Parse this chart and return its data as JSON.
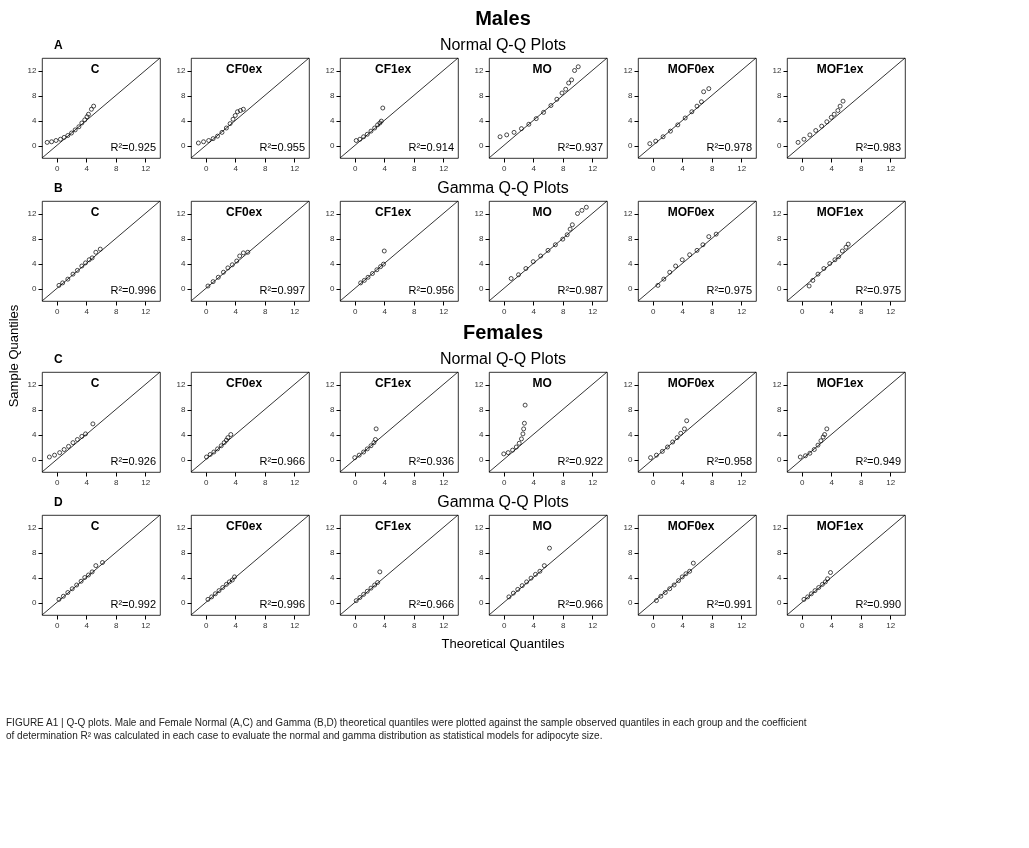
{
  "chart_data": [
    {
      "type": "other",
      "annotations": [
        "Males",
        "A",
        "Normal Q-Q Plots",
        "B",
        "Gamma Q-Q Plots",
        "Females",
        "C",
        "Normal Q-Q Plots",
        "D",
        "Gamma Q-Q Plots",
        "Sample Quantiles",
        "Theoretical Quantiles",
        "FIGURE A1 | Q-Q plots. Male and Female Normal (A,C) and Gamma (B,D) theoretical quantiles were plotted against the sample observed quantiles in each group and the coefficient of determination R² was calculated in each case to evaluate the normal and gamma distribution as statistical models for adipocyte size."
      ]
    },
    {
      "type": "scatter",
      "title": "C",
      "annotations": [
        "R²=0.925"
      ],
      "xlim": [
        -2,
        14
      ],
      "ylim": [
        -2,
        14
      ],
      "xticks": [
        0,
        4,
        8,
        12
      ],
      "yticks": [
        0,
        4,
        8,
        12
      ],
      "series": [
        {
          "type": "scatter",
          "marker": "circle",
          "color": "#000000",
          "x": [
            -1.3,
            -0.7,
            -0.1,
            0.5,
            1.0,
            1.5,
            2.0,
            2.5,
            3.0,
            3.4,
            3.8,
            4.1,
            4.3,
            4.7,
            5.0
          ],
          "values": [
            0.5,
            0.6,
            0.8,
            1.0,
            1.3,
            1.6,
            2.0,
            2.5,
            3.0,
            3.6,
            4.1,
            4.6,
            5.0,
            5.8,
            6.3
          ]
        },
        {
          "type": "line",
          "color": "#000000",
          "x": [
            -2,
            14
          ],
          "values": [
            -2,
            14
          ]
        }
      ]
    },
    {
      "type": "scatter",
      "title": "CF0ex",
      "annotations": [
        "R²=0.955"
      ],
      "xlim": [
        -2,
        14
      ],
      "ylim": [
        -2,
        14
      ],
      "xticks": [
        0,
        4,
        8,
        12
      ],
      "yticks": [
        0,
        4,
        8,
        12
      ],
      "series": [
        {
          "type": "scatter",
          "marker": "circle",
          "color": "#000000",
          "x": [
            -1.0,
            -0.3,
            0.4,
            1.0,
            1.6,
            2.2,
            2.8,
            3.3,
            3.7,
            4.0,
            4.3,
            4.7,
            5.1
          ],
          "values": [
            0.4,
            0.6,
            0.8,
            1.1,
            1.5,
            2.1,
            2.8,
            3.5,
            4.2,
            4.8,
            5.4,
            5.6,
            5.8
          ]
        },
        {
          "type": "line",
          "color": "#000000",
          "x": [
            -2,
            14
          ],
          "values": [
            -2,
            14
          ]
        }
      ]
    },
    {
      "type": "scatter",
      "title": "CF1ex",
      "annotations": [
        "R²=0.914"
      ],
      "xlim": [
        -2,
        14
      ],
      "ylim": [
        -2,
        14
      ],
      "xticks": [
        0,
        4,
        8,
        12
      ],
      "yticks": [
        0,
        4,
        8,
        12
      ],
      "series": [
        {
          "type": "scatter",
          "marker": "circle",
          "color": "#000000",
          "x": [
            0.2,
            0.7,
            1.2,
            1.7,
            2.2,
            2.7,
            3.1,
            3.4,
            3.6,
            3.8
          ],
          "values": [
            0.8,
            1.0,
            1.4,
            1.8,
            2.3,
            2.8,
            3.3,
            3.6,
            3.9,
            6.0
          ]
        },
        {
          "type": "line",
          "color": "#000000",
          "x": [
            -2,
            14
          ],
          "values": [
            -2,
            14
          ]
        }
      ]
    },
    {
      "type": "scatter",
      "title": "MO",
      "annotations": [
        "R²=0.937"
      ],
      "xlim": [
        -2,
        14
      ],
      "ylim": [
        -2,
        14
      ],
      "xticks": [
        0,
        4,
        8,
        12
      ],
      "yticks": [
        0,
        4,
        8,
        12
      ],
      "series": [
        {
          "type": "scatter",
          "marker": "circle",
          "color": "#000000",
          "x": [
            -0.5,
            0.4,
            1.4,
            2.4,
            3.4,
            4.4,
            5.4,
            6.4,
            7.2,
            7.9,
            8.4,
            8.8,
            9.2,
            9.6,
            10.1
          ],
          "values": [
            1.4,
            1.7,
            2.1,
            2.7,
            3.4,
            4.3,
            5.3,
            6.4,
            7.4,
            8.4,
            9.0,
            10.0,
            10.5,
            12.0,
            12.6
          ]
        },
        {
          "type": "line",
          "color": "#000000",
          "x": [
            -2,
            14
          ],
          "values": [
            -2,
            14
          ]
        }
      ]
    },
    {
      "type": "scatter",
      "title": "MOF0ex",
      "annotations": [
        "R²=0.978"
      ],
      "xlim": [
        -2,
        14
      ],
      "ylim": [
        -2,
        14
      ],
      "xticks": [
        0,
        4,
        8,
        12
      ],
      "yticks": [
        0,
        4,
        8,
        12
      ],
      "series": [
        {
          "type": "scatter",
          "marker": "circle",
          "color": "#000000",
          "x": [
            -0.4,
            0.4,
            1.4,
            2.4,
            3.4,
            4.4,
            5.3,
            6.0,
            6.6,
            6.9,
            7.6
          ],
          "values": [
            0.3,
            0.7,
            1.4,
            2.3,
            3.3,
            4.4,
            5.4,
            6.3,
            7.0,
            8.6,
            9.1
          ]
        },
        {
          "type": "line",
          "color": "#000000",
          "x": [
            -2,
            14
          ],
          "values": [
            -2,
            14
          ]
        }
      ]
    },
    {
      "type": "scatter",
      "title": "MOF1ex",
      "annotations": [
        "R²=0.983"
      ],
      "xlim": [
        -2,
        14
      ],
      "ylim": [
        -2,
        14
      ],
      "xticks": [
        0,
        4,
        8,
        12
      ],
      "yticks": [
        0,
        4,
        8,
        12
      ],
      "series": [
        {
          "type": "scatter",
          "marker": "circle",
          "color": "#000000",
          "x": [
            -0.5,
            0.3,
            1.1,
            1.9,
            2.7,
            3.4,
            4.0,
            4.4,
            4.9,
            5.2,
            5.6
          ],
          "values": [
            0.5,
            1.0,
            1.7,
            2.4,
            3.1,
            3.8,
            4.5,
            5.0,
            5.6,
            6.3,
            7.1
          ]
        },
        {
          "type": "line",
          "color": "#000000",
          "x": [
            -2,
            14
          ],
          "values": [
            -2,
            14
          ]
        }
      ]
    },
    {
      "type": "scatter",
      "title": "C",
      "annotations": [
        "R²=0.996"
      ],
      "xlim": [
        -2,
        14
      ],
      "ylim": [
        -2,
        14
      ],
      "xticks": [
        0,
        4,
        8,
        12
      ],
      "yticks": [
        0,
        4,
        8,
        12
      ],
      "series": [
        {
          "type": "scatter",
          "marker": "circle",
          "color": "#000000",
          "x": [
            0.3,
            0.8,
            1.5,
            2.2,
            2.8,
            3.4,
            3.9,
            4.4,
            4.8,
            5.3,
            5.9
          ],
          "values": [
            0.5,
            0.9,
            1.5,
            2.3,
            2.9,
            3.6,
            4.1,
            4.6,
            4.9,
            5.8,
            6.3
          ]
        },
        {
          "type": "line",
          "color": "#000000",
          "x": [
            -2,
            14
          ],
          "values": [
            -2,
            14
          ]
        }
      ]
    },
    {
      "type": "scatter",
      "title": "CF0ex",
      "annotations": [
        "R²=0.997"
      ],
      "xlim": [
        -2,
        14
      ],
      "ylim": [
        -2,
        14
      ],
      "xticks": [
        0,
        4,
        8,
        12
      ],
      "yticks": [
        0,
        4,
        8,
        12
      ],
      "series": [
        {
          "type": "scatter",
          "marker": "circle",
          "color": "#000000",
          "x": [
            0.3,
            1.0,
            1.7,
            2.4,
            3.0,
            3.6,
            4.2,
            4.6,
            5.1,
            5.7
          ],
          "values": [
            0.4,
            1.1,
            1.8,
            2.6,
            3.3,
            3.8,
            4.4,
            5.2,
            5.7,
            5.8
          ]
        },
        {
          "type": "line",
          "color": "#000000",
          "x": [
            -2,
            14
          ],
          "values": [
            -2,
            14
          ]
        }
      ]
    },
    {
      "type": "scatter",
      "title": "CF1ex",
      "annotations": [
        "R²=0.956"
      ],
      "xlim": [
        -2,
        14
      ],
      "ylim": [
        -2,
        14
      ],
      "xticks": [
        0,
        4,
        8,
        12
      ],
      "yticks": [
        0,
        4,
        8,
        12
      ],
      "series": [
        {
          "type": "scatter",
          "marker": "circle",
          "color": "#000000",
          "x": [
            0.8,
            1.3,
            1.8,
            2.4,
            3.0,
            3.5,
            3.9,
            4.0
          ],
          "values": [
            0.9,
            1.3,
            1.8,
            2.4,
            3.0,
            3.5,
            3.9,
            6.0
          ]
        },
        {
          "type": "line",
          "color": "#000000",
          "x": [
            -2,
            14
          ],
          "values": [
            -2,
            14
          ]
        }
      ]
    },
    {
      "type": "scatter",
      "title": "MO",
      "annotations": [
        "R²=0.987"
      ],
      "xlim": [
        -2,
        14
      ],
      "ylim": [
        -2,
        14
      ],
      "xticks": [
        0,
        4,
        8,
        12
      ],
      "yticks": [
        0,
        4,
        8,
        12
      ],
      "series": [
        {
          "type": "scatter",
          "marker": "circle",
          "color": "#000000",
          "x": [
            1.0,
            2.0,
            3.0,
            4.0,
            5.0,
            6.0,
            7.0,
            8.0,
            8.6,
            9.0,
            9.3,
            10.0,
            10.6,
            11.2
          ],
          "values": [
            1.6,
            2.2,
            3.2,
            4.3,
            5.2,
            6.1,
            7.0,
            7.9,
            8.6,
            9.5,
            10.2,
            12.0,
            12.5,
            13.0
          ]
        },
        {
          "type": "line",
          "color": "#000000",
          "x": [
            -2,
            14
          ],
          "values": [
            -2,
            14
          ]
        }
      ]
    },
    {
      "type": "scatter",
      "title": "MOF0ex",
      "annotations": [
        "R²=0.975"
      ],
      "xlim": [
        -2,
        14
      ],
      "ylim": [
        -2,
        14
      ],
      "xticks": [
        0,
        4,
        8,
        12
      ],
      "yticks": [
        0,
        4,
        8,
        12
      ],
      "series": [
        {
          "type": "scatter",
          "marker": "circle",
          "color": "#000000",
          "x": [
            0.7,
            1.5,
            2.3,
            3.1,
            4.0,
            5.0,
            6.0,
            6.8,
            7.6,
            8.6
          ],
          "values": [
            0.5,
            1.5,
            2.6,
            3.6,
            4.6,
            5.4,
            6.1,
            7.0,
            8.3,
            8.7
          ]
        },
        {
          "type": "line",
          "color": "#000000",
          "x": [
            -2,
            14
          ],
          "values": [
            -2,
            14
          ]
        }
      ]
    },
    {
      "type": "scatter",
      "title": "MOF1ex",
      "annotations": [
        "R²=0.975"
      ],
      "xlim": [
        -2,
        14
      ],
      "ylim": [
        -2,
        14
      ],
      "xticks": [
        0,
        4,
        8,
        12
      ],
      "yticks": [
        0,
        4,
        8,
        12
      ],
      "series": [
        {
          "type": "scatter",
          "marker": "circle",
          "color": "#000000",
          "x": [
            1.0,
            1.5,
            2.2,
            3.0,
            3.8,
            4.5,
            5.0,
            5.5,
            6.0,
            6.3
          ],
          "values": [
            0.4,
            1.3,
            2.3,
            3.2,
            4.0,
            4.6,
            5.1,
            6.0,
            6.6,
            7.1
          ]
        },
        {
          "type": "line",
          "color": "#000000",
          "x": [
            -2,
            14
          ],
          "values": [
            -2,
            14
          ]
        }
      ]
    },
    {
      "type": "scatter",
      "title": "C",
      "annotations": [
        "R²=0.926"
      ],
      "xlim": [
        -2,
        14
      ],
      "ylim": [
        -2,
        14
      ],
      "xticks": [
        0,
        4,
        8,
        12
      ],
      "yticks": [
        0,
        4,
        8,
        12
      ],
      "series": [
        {
          "type": "scatter",
          "marker": "circle",
          "color": "#000000",
          "x": [
            -1.0,
            -0.3,
            0.4,
            1.0,
            1.6,
            2.2,
            2.8,
            3.4,
            3.9,
            4.9
          ],
          "values": [
            0.4,
            0.7,
            1.1,
            1.6,
            2.1,
            2.7,
            3.2,
            3.7,
            4.1,
            5.7
          ]
        },
        {
          "type": "line",
          "color": "#000000",
          "x": [
            -2,
            14
          ],
          "values": [
            -2,
            14
          ]
        }
      ]
    },
    {
      "type": "scatter",
      "title": "CF0ex",
      "annotations": [
        "R²=0.966"
      ],
      "xlim": [
        -2,
        14
      ],
      "ylim": [
        -2,
        14
      ],
      "xticks": [
        0,
        4,
        8,
        12
      ],
      "yticks": [
        0,
        4,
        8,
        12
      ],
      "series": [
        {
          "type": "scatter",
          "marker": "circle",
          "color": "#000000",
          "x": [
            0.1,
            0.6,
            1.1,
            1.6,
            2.1,
            2.5,
            2.8,
            3.0,
            3.4
          ],
          "values": [
            0.4,
            0.8,
            1.2,
            1.7,
            2.2,
            2.7,
            3.1,
            3.5,
            4.0
          ]
        },
        {
          "type": "line",
          "color": "#000000",
          "x": [
            -2,
            14
          ],
          "values": [
            -2,
            14
          ]
        }
      ]
    },
    {
      "type": "scatter",
      "title": "CF1ex",
      "annotations": [
        "R²=0.936"
      ],
      "xlim": [
        -2,
        14
      ],
      "ylim": [
        -2,
        14
      ],
      "xticks": [
        0,
        4,
        8,
        12
      ],
      "yticks": [
        0,
        4,
        8,
        12
      ],
      "series": [
        {
          "type": "scatter",
          "marker": "circle",
          "color": "#000000",
          "x": [
            0.0,
            0.6,
            1.2,
            1.7,
            2.2,
            2.6,
            2.8,
            2.9
          ],
          "values": [
            0.3,
            0.7,
            1.2,
            1.7,
            2.2,
            2.7,
            3.2,
            4.9
          ]
        },
        {
          "type": "line",
          "color": "#000000",
          "x": [
            -2,
            14
          ],
          "values": [
            -2,
            14
          ]
        }
      ]
    },
    {
      "type": "scatter",
      "title": "MO",
      "annotations": [
        "R²=0.922"
      ],
      "xlim": [
        -2,
        14
      ],
      "ylim": [
        -2,
        14
      ],
      "xticks": [
        0,
        4,
        8,
        12
      ],
      "yticks": [
        0,
        4,
        8,
        12
      ],
      "series": [
        {
          "type": "scatter",
          "marker": "circle",
          "color": "#000000",
          "x": [
            0.0,
            0.6,
            1.2,
            1.7,
            2.1,
            2.4,
            2.6,
            2.7,
            2.8,
            2.9
          ],
          "values": [
            0.9,
            1.1,
            1.5,
            2.0,
            2.6,
            3.3,
            4.1,
            4.9,
            5.8,
            8.7
          ]
        },
        {
          "type": "line",
          "color": "#000000",
          "x": [
            -2,
            14
          ],
          "values": [
            -2,
            14
          ]
        }
      ]
    },
    {
      "type": "scatter",
      "title": "MOF0ex",
      "annotations": [
        "R²=0.958"
      ],
      "xlim": [
        -2,
        14
      ],
      "ylim": [
        -2,
        14
      ],
      "xticks": [
        0,
        4,
        8,
        12
      ],
      "yticks": [
        0,
        4,
        8,
        12
      ],
      "series": [
        {
          "type": "scatter",
          "marker": "circle",
          "color": "#000000",
          "x": [
            -0.3,
            0.5,
            1.3,
            2.0,
            2.7,
            3.3,
            3.8,
            4.3,
            4.6
          ],
          "values": [
            0.3,
            0.7,
            1.3,
            2.0,
            2.8,
            3.5,
            4.2,
            4.9,
            6.2
          ]
        },
        {
          "type": "line",
          "color": "#000000",
          "x": [
            -2,
            14
          ],
          "values": [
            -2,
            14
          ]
        }
      ]
    },
    {
      "type": "scatter",
      "title": "MOF1ex",
      "annotations": [
        "R²=0.949"
      ],
      "xlim": [
        -2,
        14
      ],
      "ylim": [
        -2,
        14
      ],
      "xticks": [
        0,
        4,
        8,
        12
      ],
      "yticks": [
        0,
        4,
        8,
        12
      ],
      "series": [
        {
          "type": "scatter",
          "marker": "circle",
          "color": "#000000",
          "x": [
            -0.2,
            0.5,
            1.1,
            1.7,
            2.2,
            2.6,
            2.9,
            3.1,
            3.4
          ],
          "values": [
            0.4,
            0.6,
            1.0,
            1.6,
            2.3,
            3.0,
            3.6,
            4.0,
            4.9
          ]
        },
        {
          "type": "line",
          "color": "#000000",
          "x": [
            -2,
            14
          ],
          "values": [
            -2,
            14
          ]
        }
      ]
    },
    {
      "type": "scatter",
      "title": "C",
      "annotations": [
        "R²=0.992"
      ],
      "xlim": [
        -2,
        14
      ],
      "ylim": [
        -2,
        14
      ],
      "xticks": [
        0,
        4,
        8,
        12
      ],
      "yticks": [
        0,
        4,
        8,
        12
      ],
      "series": [
        {
          "type": "scatter",
          "marker": "circle",
          "color": "#000000",
          "x": [
            0.3,
            0.9,
            1.5,
            2.1,
            2.7,
            3.3,
            3.8,
            4.3,
            4.8,
            5.3,
            6.2
          ],
          "values": [
            0.5,
            1.0,
            1.6,
            2.2,
            2.8,
            3.4,
            4.0,
            4.4,
            4.9,
            5.9,
            6.4
          ]
        },
        {
          "type": "line",
          "color": "#000000",
          "x": [
            -2,
            14
          ],
          "values": [
            -2,
            14
          ]
        }
      ]
    },
    {
      "type": "scatter",
      "title": "CF0ex",
      "annotations": [
        "R²=0.996"
      ],
      "xlim": [
        -2,
        14
      ],
      "ylim": [
        -2,
        14
      ],
      "xticks": [
        0,
        4,
        8,
        12
      ],
      "yticks": [
        0,
        4,
        8,
        12
      ],
      "series": [
        {
          "type": "scatter",
          "marker": "circle",
          "color": "#000000",
          "x": [
            0.3,
            0.8,
            1.3,
            1.8,
            2.3,
            2.8,
            3.2,
            3.6,
            3.9
          ],
          "values": [
            0.5,
            0.9,
            1.4,
            1.9,
            2.4,
            2.9,
            3.3,
            3.6,
            4.1
          ]
        },
        {
          "type": "line",
          "color": "#000000",
          "x": [
            -2,
            14
          ],
          "values": [
            -2,
            14
          ]
        }
      ]
    },
    {
      "type": "scatter",
      "title": "CF1ex",
      "annotations": [
        "R²=0.966"
      ],
      "xlim": [
        -2,
        14
      ],
      "ylim": [
        -2,
        14
      ],
      "xticks": [
        0,
        4,
        8,
        12
      ],
      "yticks": [
        0,
        4,
        8,
        12
      ],
      "series": [
        {
          "type": "scatter",
          "marker": "circle",
          "color": "#000000",
          "x": [
            0.2,
            0.7,
            1.2,
            1.7,
            2.2,
            2.7,
            3.1,
            3.4
          ],
          "values": [
            0.3,
            0.8,
            1.3,
            1.8,
            2.3,
            2.8,
            3.2,
            4.9
          ]
        },
        {
          "type": "line",
          "color": "#000000",
          "x": [
            -2,
            14
          ],
          "values": [
            -2,
            14
          ]
        }
      ]
    },
    {
      "type": "scatter",
      "title": "MO",
      "annotations": [
        "R²=0.966"
      ],
      "xlim": [
        -2,
        14
      ],
      "ylim": [
        -2,
        14
      ],
      "xticks": [
        0,
        4,
        8,
        12
      ],
      "yticks": [
        0,
        4,
        8,
        12
      ],
      "series": [
        {
          "type": "scatter",
          "marker": "circle",
          "color": "#000000",
          "x": [
            0.7,
            1.3,
            1.9,
            2.5,
            3.1,
            3.7,
            4.3,
            4.9,
            5.5,
            6.2
          ],
          "values": [
            0.9,
            1.5,
            2.1,
            2.7,
            3.3,
            3.9,
            4.5,
            5.0,
            5.9,
            8.7
          ]
        },
        {
          "type": "line",
          "color": "#000000",
          "x": [
            -2,
            14
          ],
          "values": [
            -2,
            14
          ]
        }
      ]
    },
    {
      "type": "scatter",
      "title": "MOF0ex",
      "annotations": [
        "R²=0.991"
      ],
      "xlim": [
        -2,
        14
      ],
      "ylim": [
        -2,
        14
      ],
      "xticks": [
        0,
        4,
        8,
        12
      ],
      "yticks": [
        0,
        4,
        8,
        12
      ],
      "series": [
        {
          "type": "scatter",
          "marker": "circle",
          "color": "#000000",
          "x": [
            0.5,
            1.1,
            1.7,
            2.3,
            2.9,
            3.5,
            4.0,
            4.5,
            5.0,
            5.5
          ],
          "values": [
            0.3,
            1.0,
            1.6,
            2.2,
            2.8,
            3.5,
            4.1,
            4.6,
            5.0,
            6.3
          ]
        },
        {
          "type": "line",
          "color": "#000000",
          "x": [
            -2,
            14
          ],
          "values": [
            -2,
            14
          ]
        }
      ]
    },
    {
      "type": "scatter",
      "title": "MOF1ex",
      "annotations": [
        "R²=0.990"
      ],
      "xlim": [
        -2,
        14
      ],
      "ylim": [
        -2,
        14
      ],
      "xticks": [
        0,
        4,
        8,
        12
      ],
      "yticks": [
        0,
        4,
        8,
        12
      ],
      "series": [
        {
          "type": "scatter",
          "marker": "circle",
          "color": "#000000",
          "x": [
            0.3,
            0.8,
            1.3,
            1.8,
            2.3,
            2.8,
            3.2,
            3.5,
            3.9
          ],
          "values": [
            0.5,
            0.9,
            1.4,
            1.9,
            2.4,
            2.9,
            3.3,
            3.8,
            4.8
          ]
        },
        {
          "type": "line",
          "color": "#000000",
          "x": [
            -2,
            14
          ],
          "values": [
            -2,
            14
          ]
        }
      ]
    }
  ]
}
